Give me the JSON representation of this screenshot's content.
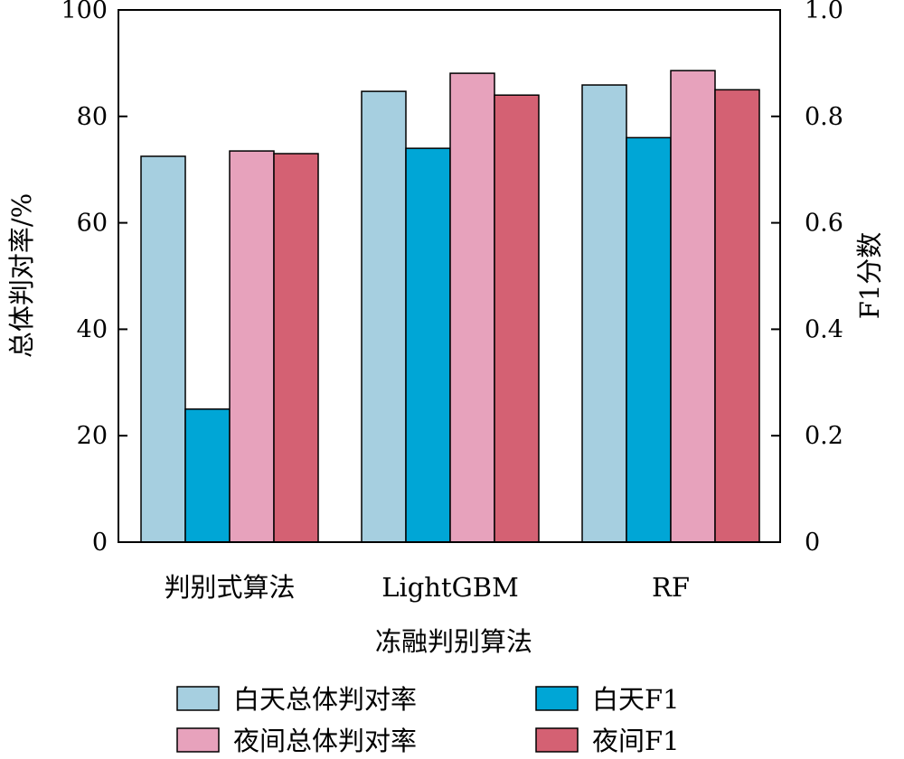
{
  "chart_data": {
    "type": "bar",
    "title": "",
    "xlabel": "冻融判别算法",
    "ylabel_left": "总体判对率/%",
    "ylabel_right": "F1分数",
    "categories": [
      "判别式算法",
      "LightGBM",
      "RF"
    ],
    "ylim_left": [
      0,
      100
    ],
    "ylim_right": [
      0,
      1.0
    ],
    "yticks_left": [
      "0",
      "20",
      "40",
      "60",
      "80",
      "100"
    ],
    "yticks_right": [
      "0",
      "0.2",
      "0.4",
      "0.6",
      "0.8",
      "1.0"
    ],
    "series": [
      {
        "name": "白天总体判对率",
        "axis": "left",
        "color": "#a6cfe0",
        "values": [
          72.5,
          84.7,
          85.9
        ]
      },
      {
        "name": "白天F1",
        "axis": "right",
        "color": "#00a6d6",
        "values": [
          0.25,
          0.74,
          0.76
        ]
      },
      {
        "name": "夜间总体判对率",
        "axis": "left",
        "color": "#e7a2bc",
        "values": [
          73.5,
          88.1,
          88.6
        ]
      },
      {
        "name": "夜间F1",
        "axis": "right",
        "color": "#d46173",
        "values": [
          0.73,
          0.84,
          0.85
        ]
      }
    ],
    "legend": "bottom",
    "grid": false
  }
}
